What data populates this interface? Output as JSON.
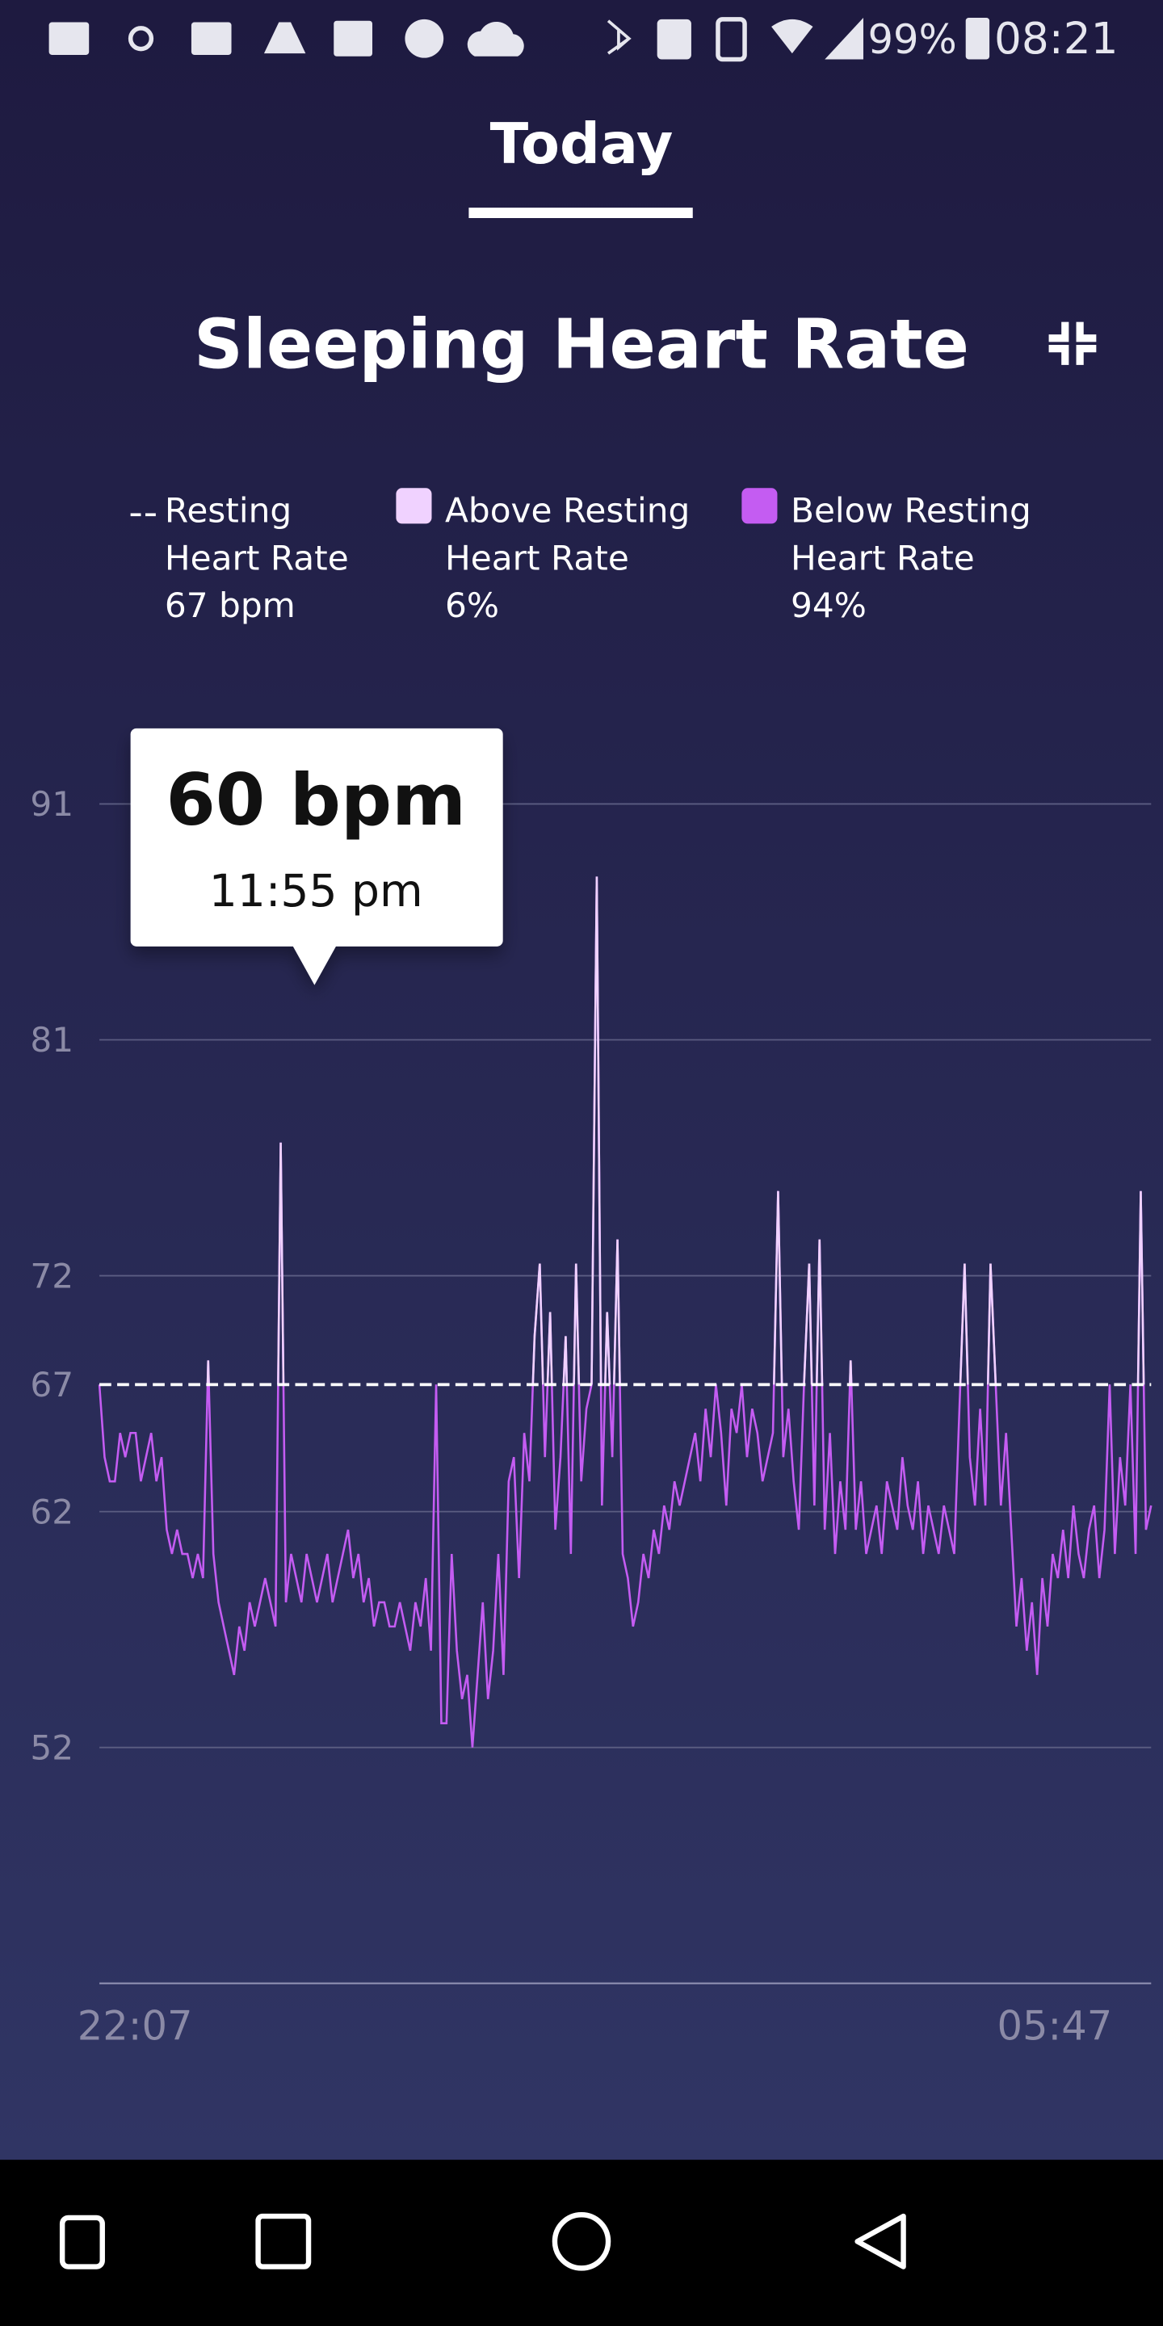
{
  "status_bar": {
    "battery": "99%",
    "time": "08:21"
  },
  "tab": "Today",
  "chart_data": {
    "type": "line",
    "title": "Sleeping Heart Rate",
    "legend": [
      {
        "lines": [
          "Resting",
          "Heart Rate"
        ],
        "value": 67,
        "value_label": "67 bpm",
        "color": "#ffffff"
      },
      {
        "lines": [
          "Above Resting",
          "Heart Rate"
        ],
        "value": 6,
        "value_label": "6%",
        "color": "#f0d2ff"
      },
      {
        "lines": [
          "Below Resting",
          "Heart Rate"
        ],
        "value": 94,
        "value_label": "94%",
        "color": "#c45cf2"
      }
    ],
    "tooltip": {
      "label": "60 bpm",
      "time": "11:55 pm"
    },
    "ylim": [
      42.25,
      94.8
    ],
    "yticks": [
      52,
      {
        "value": 61.75,
        "label": "62"
      },
      67,
      {
        "value": 71.5,
        "label": "72"
      },
      {
        "value": 81.25,
        "label": "81"
      },
      91
    ],
    "grid": true,
    "categories": [
      "22:07",
      null,
      null,
      null,
      null,
      null,
      null,
      null,
      null,
      null,
      null,
      null,
      null,
      null,
      null,
      null,
      null,
      null,
      null,
      null,
      null,
      null,
      null,
      null,
      null,
      null,
      null,
      null,
      null,
      null,
      null,
      null,
      null,
      null,
      null,
      null,
      null,
      null,
      null,
      null,
      null,
      null,
      null,
      null,
      null,
      null,
      null,
      null,
      null,
      null,
      null,
      null,
      null,
      null,
      null,
      null,
      null,
      null,
      null,
      null,
      null,
      null,
      null,
      null,
      null,
      null,
      null,
      null,
      null,
      null,
      null,
      null,
      null,
      null,
      null,
      null,
      null,
      null,
      null,
      null,
      null,
      null,
      null,
      null,
      null,
      null,
      null,
      null,
      null,
      null,
      null,
      null,
      null,
      null,
      null,
      null,
      null,
      null,
      null,
      null,
      null,
      null,
      null,
      null,
      null,
      null,
      null,
      null,
      null,
      null,
      null,
      null,
      null,
      null,
      null,
      null,
      null,
      null,
      null,
      null,
      null,
      null,
      null,
      null,
      null,
      null,
      null,
      null,
      null,
      null,
      null,
      null,
      null,
      null,
      null,
      null,
      null,
      null,
      null,
      null,
      null,
      null,
      null,
      null,
      null,
      null,
      null,
      null,
      null,
      null,
      null,
      null,
      null,
      null,
      null,
      null,
      null,
      null,
      null,
      null,
      null,
      null,
      null,
      null,
      null,
      null,
      null,
      null,
      null,
      null,
      null,
      null,
      null,
      null,
      null,
      null,
      null,
      null,
      null,
      null,
      null,
      null,
      null,
      null,
      null,
      null,
      null,
      null,
      null,
      null,
      null,
      null,
      null,
      null,
      null,
      null,
      null,
      null,
      null,
      null,
      null,
      null,
      null,
      "05:47"
    ],
    "values": [
      67,
      64,
      63,
      63,
      65,
      64,
      65,
      65,
      63,
      64,
      65,
      63,
      64,
      61,
      60,
      61,
      60,
      60,
      59,
      60,
      59,
      68,
      60,
      58,
      57,
      56,
      55,
      57,
      56,
      58,
      57,
      58,
      59,
      58,
      57,
      77,
      58,
      60,
      59,
      58,
      60,
      59,
      58,
      59,
      60,
      58,
      59,
      60,
      61,
      59,
      60,
      58,
      59,
      57,
      58,
      58,
      57,
      57,
      58,
      57,
      56,
      58,
      57,
      59,
      56,
      67,
      53,
      53,
      60,
      56,
      54,
      55,
      52,
      55,
      58,
      54,
      56,
      60,
      55,
      63,
      64,
      59,
      65,
      63,
      69,
      72,
      64,
      70,
      61,
      64,
      69,
      60,
      72,
      63,
      66,
      67,
      88,
      62,
      70,
      64,
      73,
      60,
      59,
      57,
      58,
      60,
      59,
      61,
      60,
      62,
      61,
      63,
      62,
      63,
      64,
      65,
      63,
      66,
      64,
      67,
      65,
      62,
      66,
      65,
      67,
      64,
      66,
      65,
      63,
      64,
      65,
      75,
      64,
      66,
      63,
      61,
      67,
      72,
      62,
      73,
      61,
      65,
      60,
      63,
      61,
      68,
      61,
      63,
      60,
      61,
      62,
      60,
      63,
      62,
      61,
      64,
      62,
      61,
      63,
      60,
      62,
      61,
      60,
      62,
      61,
      60,
      66,
      72,
      64,
      62,
      66,
      62,
      72,
      67,
      62,
      65,
      61,
      57,
      59,
      56,
      58,
      55,
      59,
      57,
      60,
      59,
      61,
      59,
      62,
      60,
      59,
      61,
      62,
      59,
      61,
      67,
      60,
      64,
      62,
      67,
      60,
      75,
      61,
      62
    ]
  }
}
